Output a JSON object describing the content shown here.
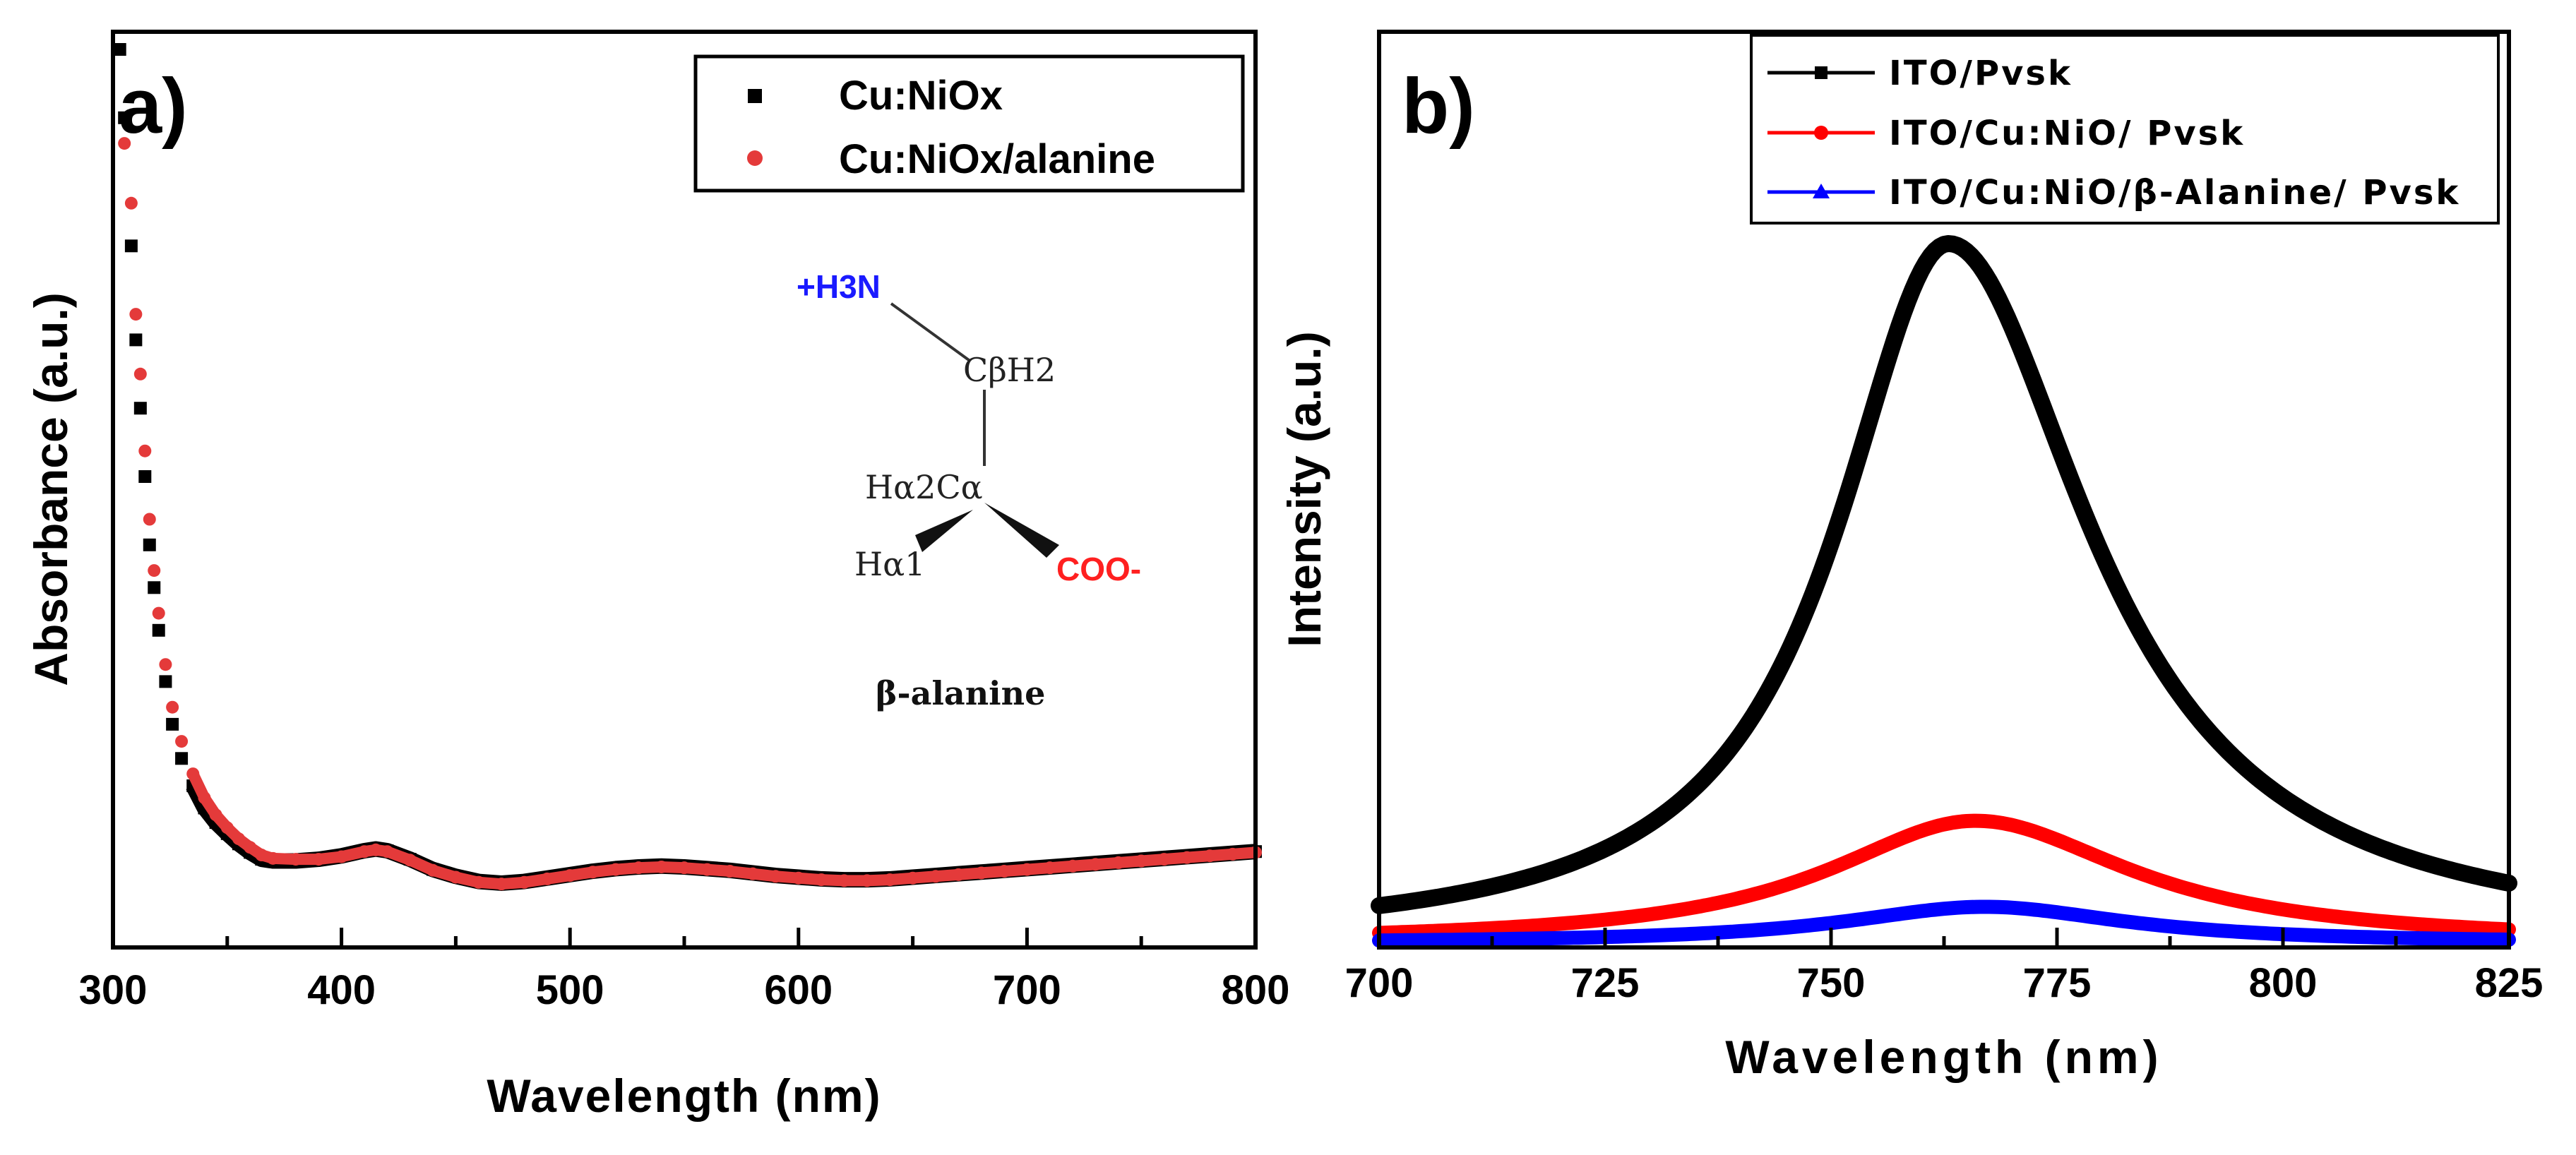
{
  "chart_data": [
    {
      "panel": "a)",
      "type": "scatter",
      "xlabel": "Wavelength (nm)",
      "ylabel": "Absorbance (a.u.)",
      "xlim": [
        300,
        800
      ],
      "ylim": [
        0,
        1
      ],
      "x_ticks": [
        "300",
        "400",
        "500",
        "600",
        "700",
        "800"
      ],
      "y_ticks_shown": false,
      "legend": [
        "Cu:NiOx",
        "Cu:NiOx/alanine"
      ],
      "legend_position": "top-right",
      "series": [
        {
          "name": "Cu:NiOx",
          "color": "#000000",
          "marker": "square",
          "x": [
            303,
            305,
            308,
            310,
            312,
            314,
            316,
            318,
            320,
            323,
            326,
            330,
            335,
            340,
            345,
            350,
            355,
            360,
            365,
            370,
            380,
            390,
            400,
            410,
            415,
            420,
            430,
            440,
            450,
            460,
            470,
            480,
            490,
            500,
            510,
            520,
            530,
            540,
            550,
            560,
            570,
            580,
            590,
            600,
            610,
            620,
            630,
            640,
            650,
            660,
            670,
            680,
            690,
            700,
            710,
            720,
            730,
            740,
            750,
            760,
            770,
            780,
            790,
            800
          ],
          "y": [
            1.0,
            0.92,
            0.77,
            0.66,
            0.58,
            0.5,
            0.42,
            0.37,
            0.32,
            0.26,
            0.21,
            0.17,
            0.138,
            0.112,
            0.095,
            0.082,
            0.07,
            0.06,
            0.052,
            0.05,
            0.05,
            0.052,
            0.056,
            0.062,
            0.064,
            0.062,
            0.052,
            0.04,
            0.032,
            0.026,
            0.024,
            0.026,
            0.03,
            0.034,
            0.038,
            0.041,
            0.043,
            0.044,
            0.043,
            0.041,
            0.039,
            0.036,
            0.033,
            0.031,
            0.029,
            0.028,
            0.028,
            0.029,
            0.031,
            0.033,
            0.035,
            0.037,
            0.039,
            0.041,
            0.043,
            0.045,
            0.047,
            0.049,
            0.051,
            0.053,
            0.055,
            0.057,
            0.059,
            0.061
          ]
        },
        {
          "name": "Cu:NiOx/alanine",
          "color": "#e43a3a",
          "marker": "circle",
          "x": [
            305,
            308,
            310,
            312,
            314,
            316,
            318,
            320,
            323,
            326,
            330,
            335,
            340,
            345,
            350,
            355,
            360,
            365,
            370,
            380,
            390,
            400,
            410,
            415,
            420,
            430,
            440,
            450,
            460,
            470,
            480,
            490,
            500,
            510,
            520,
            530,
            540,
            550,
            560,
            570,
            580,
            590,
            600,
            610,
            620,
            630,
            640,
            650,
            660,
            670,
            680,
            690,
            700,
            710,
            720,
            730,
            740,
            750,
            760,
            770,
            780,
            790,
            800
          ],
          "y": [
            0.89,
            0.82,
            0.69,
            0.62,
            0.53,
            0.45,
            0.39,
            0.34,
            0.28,
            0.23,
            0.19,
            0.152,
            0.124,
            0.104,
            0.089,
            0.076,
            0.066,
            0.057,
            0.053,
            0.052,
            0.052,
            0.055,
            0.061,
            0.063,
            0.061,
            0.051,
            0.039,
            0.031,
            0.025,
            0.023,
            0.025,
            0.029,
            0.033,
            0.037,
            0.04,
            0.042,
            0.043,
            0.042,
            0.04,
            0.038,
            0.035,
            0.032,
            0.03,
            0.028,
            0.027,
            0.027,
            0.028,
            0.03,
            0.032,
            0.034,
            0.036,
            0.038,
            0.04,
            0.042,
            0.044,
            0.046,
            0.048,
            0.05,
            0.052,
            0.054,
            0.056,
            0.058,
            0.06
          ]
        }
      ],
      "inset": {
        "name": "β-alanine",
        "labels": {
          "ammonium": "+H3N",
          "c_beta": "CβH2",
          "c_alpha": "Hα2Cα",
          "h_alpha1": "Hα1",
          "carboxylate": "COO-"
        },
        "colors": {
          "ammonium": "#1a1aff",
          "carboxylate": "#ff2020",
          "bonds": "#333333"
        }
      }
    },
    {
      "panel": "b)",
      "type": "line",
      "xlabel": "Wavelength (nm)",
      "ylabel": "Intensity (a.u.)",
      "xlim": [
        700,
        825
      ],
      "ylim": [
        0,
        1
      ],
      "x_ticks": [
        "700",
        "725",
        "750",
        "775",
        "800",
        "825"
      ],
      "y_ticks_shown": false,
      "legend_position": "top-right",
      "series": [
        {
          "name": "ITO/Pvsk",
          "color": "#000000",
          "marker": "square",
          "peak_center": 763,
          "peak_value": 1.0,
          "hwhm_left": 15,
          "hwhm_right": 19,
          "baseline": 0.0
        },
        {
          "name": "ITO/Cu:NiO/ Pvsk",
          "color": "#ff0000",
          "marker": "circle",
          "peak_center": 766,
          "peak_value": 0.175,
          "hwhm_left": 20,
          "hwhm_right": 21,
          "baseline": 0.0
        },
        {
          "name": "ITO/Cu:NiO/β-Alanine/ Pvsk",
          "color": "#0000ff",
          "marker": "triangle",
          "peak_center": 767,
          "peak_value": 0.052,
          "hwhm_left": 19,
          "hwhm_right": 19,
          "baseline": 0.0
        }
      ]
    }
  ]
}
